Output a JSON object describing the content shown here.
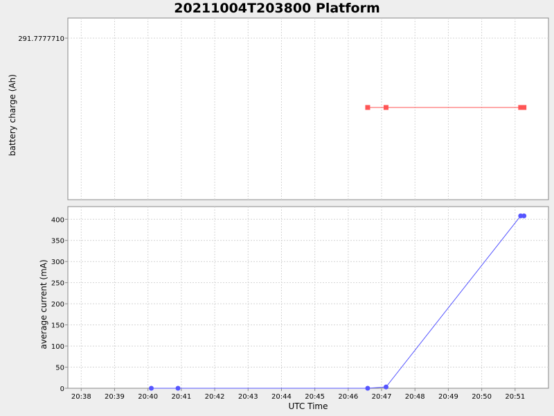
{
  "chart_data": {
    "title": "20211004T203800 Platform",
    "x": {
      "label": "UTC Time",
      "ticks": [
        "20:38",
        "20:39",
        "20:40",
        "20:41",
        "20:42",
        "20:43",
        "20:44",
        "20:45",
        "20:46",
        "20:47",
        "20:48",
        "20:49",
        "20:50",
        "20:51"
      ],
      "range": [
        "20:37:36",
        "20:52:00"
      ]
    },
    "subplots": [
      {
        "type": "line",
        "ylabel": "battery charge (Ah)",
        "yticks": [
          "291.7777710"
        ],
        "series": [
          {
            "color": "#ff5555",
            "marker": "square",
            "points": [
              {
                "x": "20:46:35",
                "y": 291.777771
              },
              {
                "x": "20:47:08",
                "y": 291.777771
              },
              {
                "x": "20:51:10",
                "y": 291.777771
              },
              {
                "x": "20:51:16",
                "y": 291.777771
              }
            ]
          }
        ]
      },
      {
        "type": "line",
        "ylabel": "average current (mA)",
        "ylim": [
          0,
          430
        ],
        "yticks": [
          0,
          50,
          100,
          150,
          200,
          250,
          300,
          350,
          400
        ],
        "series": [
          {
            "color": "#5555ff",
            "marker": "circle",
            "points": [
              {
                "x": "20:40:06",
                "y": 0
              },
              {
                "x": "20:40:54",
                "y": 0
              },
              {
                "x": "20:46:35",
                "y": 0
              },
              {
                "x": "20:47:08",
                "y": 3
              },
              {
                "x": "20:51:10",
                "y": 408
              },
              {
                "x": "20:51:16",
                "y": 408
              }
            ]
          }
        ]
      }
    ],
    "grid": true
  }
}
